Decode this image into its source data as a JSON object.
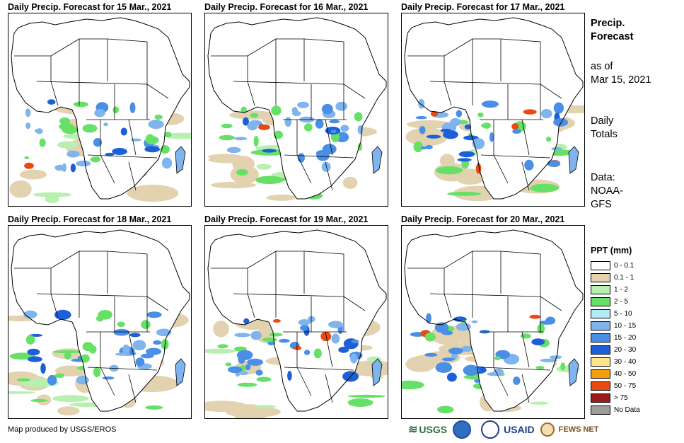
{
  "panels": [
    {
      "title": "Daily Precip. Forecast for 15 Mar., 2021"
    },
    {
      "title": "Daily Precip. Forecast for 16 Mar., 2021"
    },
    {
      "title": "Daily Precip. Forecast for 17 Mar., 2021"
    },
    {
      "title": "Daily Precip. Forecast for 18 Mar., 2021"
    },
    {
      "title": "Daily Precip. Forecast for 19 Mar., 2021"
    },
    {
      "title": "Daily Precip. Forecast for 20 Mar., 2021"
    }
  ],
  "side": {
    "title_line1": "Precip.",
    "title_line2": "Forecast",
    "asof_line1": "as of",
    "asof_line2": "Mar 15, 2021",
    "totals_line1": "Daily",
    "totals_line2": "Totals",
    "data_line1": "Data:",
    "data_line2": "NOAA-",
    "data_line3": "GFS"
  },
  "legend": {
    "title": "PPT (mm)",
    "items": [
      {
        "label": "0 - 0.1",
        "color": "#ffffff"
      },
      {
        "label": "0.1 - 1",
        "color": "#e3d2b0"
      },
      {
        "label": "1 - 2",
        "color": "#b7f0b0"
      },
      {
        "label": "2 - 5",
        "color": "#66e066"
      },
      {
        "label": "5 - 10",
        "color": "#b2ecf7"
      },
      {
        "label": "10 - 15",
        "color": "#7fb4ee"
      },
      {
        "label": "15 - 20",
        "color": "#4a8ee6"
      },
      {
        "label": "20 - 30",
        "color": "#1c5fd8"
      },
      {
        "label": "30 - 40",
        "color": "#fde68a"
      },
      {
        "label": "40 - 50",
        "color": "#f59e0b"
      },
      {
        "label": "50 - 75",
        "color": "#ea4a12"
      },
      {
        "label": "> 75",
        "color": "#9b1c1c"
      },
      {
        "label": "No Data",
        "color": "#9c9c9c"
      }
    ]
  },
  "credit": "Map produced by USGS/EROS",
  "logos": {
    "usgs": "USGS",
    "noaa": "NOAA",
    "usaid": "USAID",
    "fews": "FEWS NET"
  }
}
